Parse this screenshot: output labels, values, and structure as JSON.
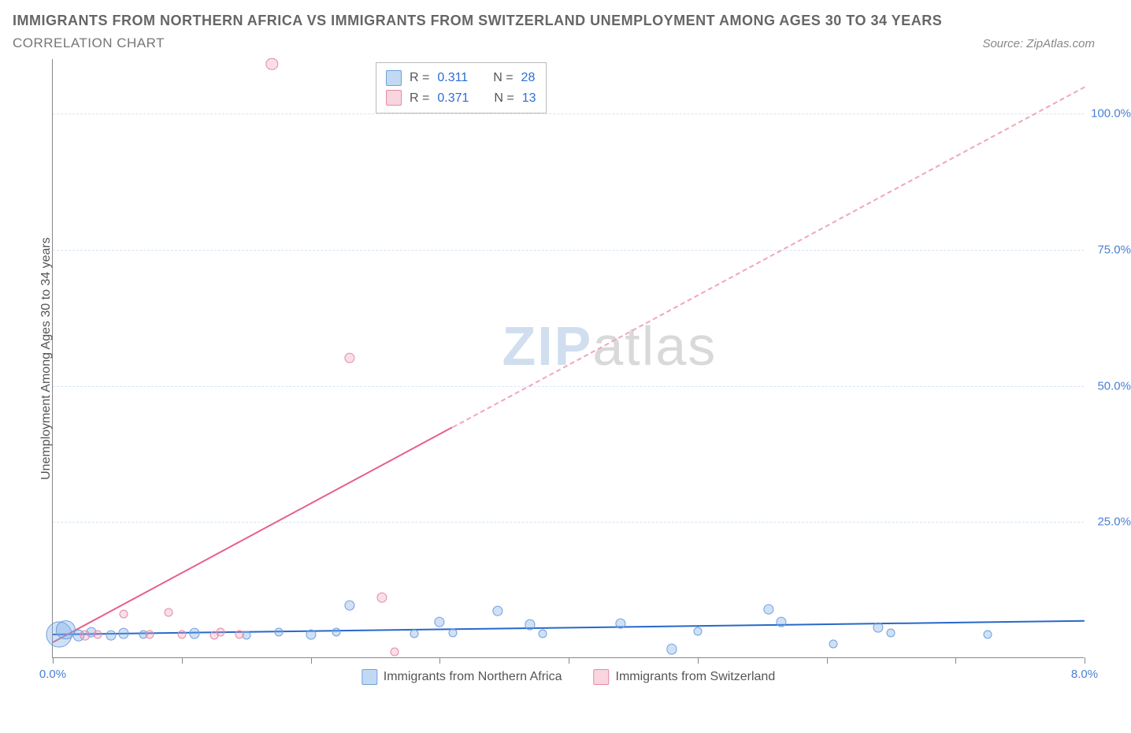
{
  "title": "IMMIGRANTS FROM NORTHERN AFRICA VS IMMIGRANTS FROM SWITZERLAND UNEMPLOYMENT AMONG AGES 30 TO 34 YEARS",
  "subtitle": "CORRELATION CHART",
  "source_label": "Source: ZipAtlas.com",
  "watermark": {
    "part1": "ZIP",
    "part2": "atlas"
  },
  "y_axis_label": "Unemployment Among Ages 30 to 34 years",
  "chart": {
    "type": "scatter",
    "xlim": [
      0,
      8
    ],
    "ylim": [
      0,
      110
    ],
    "x_ticks_at": [
      0,
      1,
      2,
      3,
      4,
      5,
      6,
      7,
      8
    ],
    "x_tick_labels": {
      "0": "0.0%",
      "8": "8.0%"
    },
    "y_ticks": [
      {
        "v": 25,
        "label": "25.0%"
      },
      {
        "v": 50,
        "label": "50.0%"
      },
      {
        "v": 75,
        "label": "75.0%"
      },
      {
        "v": 100,
        "label": "100.0%"
      }
    ],
    "background_color": "#ffffff",
    "grid_color": "#d6e4f7",
    "series": [
      {
        "name": "Immigrants from Northern Africa",
        "color_fill": "rgba(120,170,230,0.35)",
        "color_stroke": "#6fa0de",
        "tone": "blue",
        "R": 0.311,
        "N": 28,
        "trend": {
          "y_at_x0": 4.5,
          "y_at_x8": 7.0,
          "dash_from_x": null,
          "color": "#2768c9"
        },
        "points": [
          {
            "x": 0.05,
            "y": 4.2,
            "r": 30
          },
          {
            "x": 0.1,
            "y": 5.0,
            "r": 22
          },
          {
            "x": 0.2,
            "y": 4.0,
            "r": 14
          },
          {
            "x": 0.3,
            "y": 4.6,
            "r": 12
          },
          {
            "x": 0.45,
            "y": 4.0,
            "r": 12
          },
          {
            "x": 0.55,
            "y": 4.4,
            "r": 12
          },
          {
            "x": 0.7,
            "y": 4.2,
            "r": 10
          },
          {
            "x": 1.1,
            "y": 4.4,
            "r": 12
          },
          {
            "x": 1.5,
            "y": 4.1,
            "r": 10
          },
          {
            "x": 1.75,
            "y": 4.6,
            "r": 10
          },
          {
            "x": 2.0,
            "y": 4.2,
            "r": 12
          },
          {
            "x": 2.2,
            "y": 4.6,
            "r": 10
          },
          {
            "x": 2.3,
            "y": 9.5,
            "r": 12
          },
          {
            "x": 2.8,
            "y": 4.4,
            "r": 10
          },
          {
            "x": 3.0,
            "y": 6.5,
            "r": 12
          },
          {
            "x": 3.1,
            "y": 4.5,
            "r": 10
          },
          {
            "x": 3.45,
            "y": 8.5,
            "r": 12
          },
          {
            "x": 3.7,
            "y": 6.0,
            "r": 12
          },
          {
            "x": 3.8,
            "y": 4.4,
            "r": 10
          },
          {
            "x": 4.4,
            "y": 6.2,
            "r": 12
          },
          {
            "x": 4.8,
            "y": 1.5,
            "r": 12
          },
          {
            "x": 5.0,
            "y": 4.8,
            "r": 10
          },
          {
            "x": 5.55,
            "y": 8.8,
            "r": 12
          },
          {
            "x": 5.65,
            "y": 6.5,
            "r": 12
          },
          {
            "x": 6.05,
            "y": 2.5,
            "r": 10
          },
          {
            "x": 6.4,
            "y": 5.5,
            "r": 12
          },
          {
            "x": 6.5,
            "y": 4.5,
            "r": 10
          },
          {
            "x": 7.25,
            "y": 4.2,
            "r": 10
          }
        ]
      },
      {
        "name": "Immigrants from Switzerland",
        "color_fill": "rgba(240,150,175,0.30)",
        "color_stroke": "#e28ba5",
        "tone": "pink",
        "R": 0.371,
        "N": 13,
        "trend": {
          "y_at_x0": 3.0,
          "y_at_x8": 105.0,
          "dash_from_x": 3.1,
          "color": "#e85f8a"
        },
        "points": [
          {
            "x": 0.25,
            "y": 4.0,
            "r": 12
          },
          {
            "x": 0.35,
            "y": 4.2,
            "r": 10
          },
          {
            "x": 0.55,
            "y": 8.0,
            "r": 10
          },
          {
            "x": 0.75,
            "y": 4.2,
            "r": 10
          },
          {
            "x": 0.9,
            "y": 8.2,
            "r": 10
          },
          {
            "x": 1.0,
            "y": 4.2,
            "r": 10
          },
          {
            "x": 1.25,
            "y": 4.0,
            "r": 10
          },
          {
            "x": 1.3,
            "y": 4.6,
            "r": 10
          },
          {
            "x": 1.45,
            "y": 4.2,
            "r": 10
          },
          {
            "x": 1.7,
            "y": 109.0,
            "r": 14
          },
          {
            "x": 2.3,
            "y": 55.0,
            "r": 12
          },
          {
            "x": 2.55,
            "y": 11.0,
            "r": 12
          },
          {
            "x": 2.65,
            "y": 1.0,
            "r": 10
          }
        ]
      }
    ]
  },
  "stats_legend": {
    "rows": [
      {
        "tone": "blue",
        "R_label": "R =",
        "R": "0.311",
        "N_label": "N =",
        "N": "28"
      },
      {
        "tone": "pink",
        "R_label": "R =",
        "R": "0.371",
        "N_label": "N =",
        "N": "13"
      }
    ]
  },
  "bottom_legend": [
    {
      "tone": "blue",
      "label": "Immigrants from Northern Africa"
    },
    {
      "tone": "pink",
      "label": "Immigrants from Switzerland"
    }
  ]
}
